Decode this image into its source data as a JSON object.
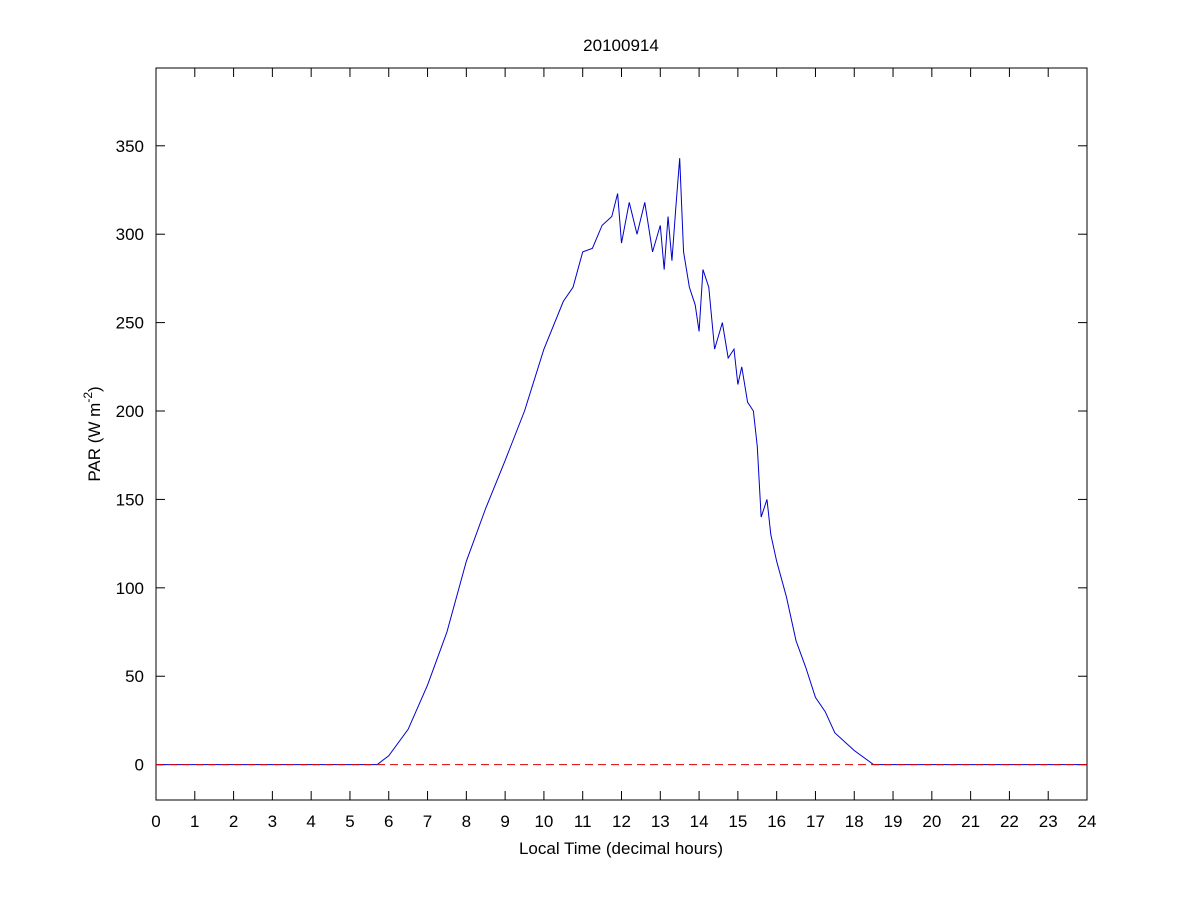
{
  "chart_data": {
    "type": "line",
    "title": "20100914",
    "xlabel": "Local Time (decimal hours)",
    "ylabel": {
      "text": "PAR (W m",
      "sup": "-2",
      "tail": ")"
    },
    "xlim": [
      0,
      24
    ],
    "xticks": [
      0,
      1,
      2,
      3,
      4,
      5,
      6,
      7,
      8,
      9,
      10,
      11,
      12,
      13,
      14,
      15,
      16,
      17,
      18,
      19,
      20,
      21,
      22,
      23,
      24
    ],
    "ylim": [
      -20,
      394
    ],
    "yticks": [
      0,
      50,
      100,
      150,
      200,
      250,
      300,
      350
    ],
    "series": [
      {
        "color": "#0000cc",
        "dash": false,
        "x": [
          0,
          5.7,
          6,
          6.5,
          7,
          7.5,
          8,
          8.5,
          9,
          9.5,
          10,
          10.5,
          10.75,
          11,
          11.25,
          11.5,
          11.75,
          11.9,
          12,
          12.2,
          12.4,
          12.6,
          12.8,
          13,
          13.1,
          13.2,
          13.3,
          13.4,
          13.5,
          13.6,
          13.75,
          13.9,
          14,
          14.1,
          14.25,
          14.4,
          14.6,
          14.75,
          14.9,
          15,
          15.1,
          15.25,
          15.4,
          15.5,
          15.6,
          15.75,
          15.85,
          16,
          16.25,
          16.5,
          16.75,
          17,
          17.25,
          17.5,
          18,
          18.5,
          24
        ],
        "values": [
          0,
          0,
          5,
          20,
          45,
          75,
          115,
          145,
          172,
          200,
          235,
          262,
          270,
          290,
          292,
          305,
          310,
          323,
          295,
          318,
          300,
          318,
          290,
          305,
          280,
          310,
          285,
          315,
          343,
          290,
          270,
          260,
          245,
          280,
          270,
          235,
          250,
          230,
          235,
          215,
          225,
          205,
          200,
          180,
          140,
          150,
          130,
          115,
          95,
          70,
          55,
          38,
          30,
          18,
          8,
          0,
          0
        ]
      },
      {
        "color": "#dd0000",
        "dash": true,
        "x": [
          0,
          24
        ],
        "values": [
          0,
          0
        ]
      }
    ]
  }
}
